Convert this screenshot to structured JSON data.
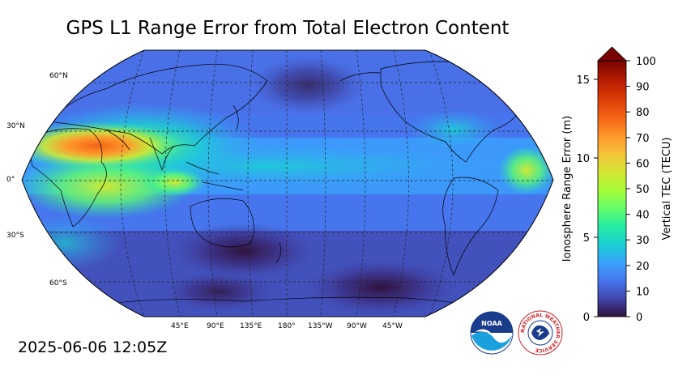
{
  "title": "GPS L1 Range Error from Total Electron Content",
  "timestamp": "2025-06-06 12:05Z",
  "map": {
    "projection": "Robinson",
    "central_longitude": "180",
    "lat_labels": [
      "60°N",
      "30°N",
      "0°",
      "30°S",
      "60°S"
    ],
    "lon_labels": [
      "45°E",
      "90°E",
      "135°E",
      "180°",
      "135°W",
      "90°W",
      "45°W"
    ],
    "gridlines": true
  },
  "colorbar": {
    "left_label": "Ionosphere Range Error (m)",
    "right_label": "Vertical TEC (TECU)",
    "left_ticks": [
      "0",
      "5",
      "10",
      "15"
    ],
    "right_ticks": [
      "0",
      "10",
      "20",
      "30",
      "40",
      "50",
      "60",
      "70",
      "80",
      "90",
      "100"
    ],
    "range_tecu": [
      0,
      100
    ],
    "range_m": [
      0,
      16.2
    ],
    "extend": "max",
    "colormap": [
      "#30123b",
      "#4145ab",
      "#4675ed",
      "#39a2fc",
      "#1bcfd4",
      "#24eca6",
      "#61fc6c",
      "#a4fc3b",
      "#d1e834",
      "#f3c63a",
      "#fe9b2d",
      "#f36315",
      "#d93806",
      "#b11901",
      "#7a0402"
    ]
  },
  "logos": {
    "noaa_text": "NOAA",
    "nws_text": "NATIONAL WEATHER SERVICE"
  }
}
